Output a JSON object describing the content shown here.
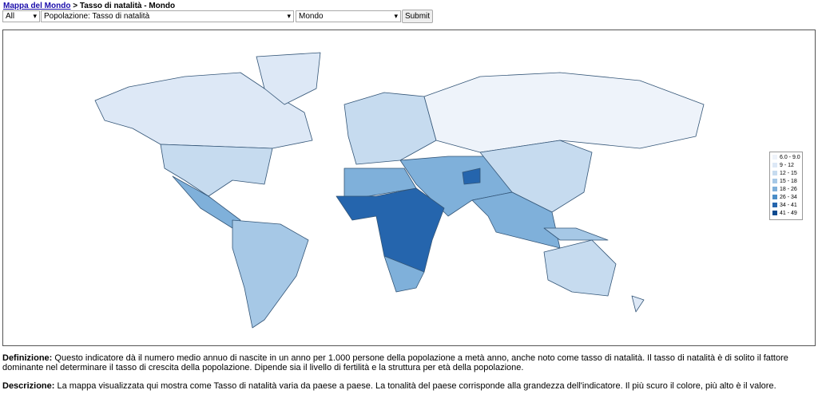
{
  "header": {
    "link": "Mappa del Mondo",
    "title": " > Tasso di natalità - Mondo"
  },
  "controls": {
    "filter": "All",
    "indicator": "Popolazione: Tasso di natalità",
    "region": "Mondo",
    "submit": "Submit"
  },
  "legend": {
    "items": [
      {
        "label": "6.0 - 9.0",
        "color": "#eef3fa"
      },
      {
        "label": "9 - 12",
        "color": "#dde8f6"
      },
      {
        "label": "12 - 15",
        "color": "#c6dbef"
      },
      {
        "label": "15 - 18",
        "color": "#a6c8e6"
      },
      {
        "label": "18 - 26",
        "color": "#7fb0da"
      },
      {
        "label": "26 - 34",
        "color": "#4a8dc7"
      },
      {
        "label": "34 - 41",
        "color": "#2565ad"
      },
      {
        "label": "41 - 49",
        "color": "#0d4a8f"
      }
    ]
  },
  "definition": {
    "label": "Definizione:",
    "text": " Questo indicatore dà il numero medio annuo di nascite in un anno per 1.000 persone della popolazione a metà anno, anche noto come tasso di natalità. Il tasso di natalità è di solito il fattore dominante nel determinare il tasso di crescita della popolazione. Dipende sia il livello di fertilità e la struttura per età della popolazione."
  },
  "description": {
    "label": "Descrizione:",
    "text": " La mappa visualizzata qui mostra come Tasso di natalità varia da paese a paese. La tonalità del paese corrisponde alla grandezza dell'indicatore. Il più scuro il colore, più alto è il valore."
  }
}
